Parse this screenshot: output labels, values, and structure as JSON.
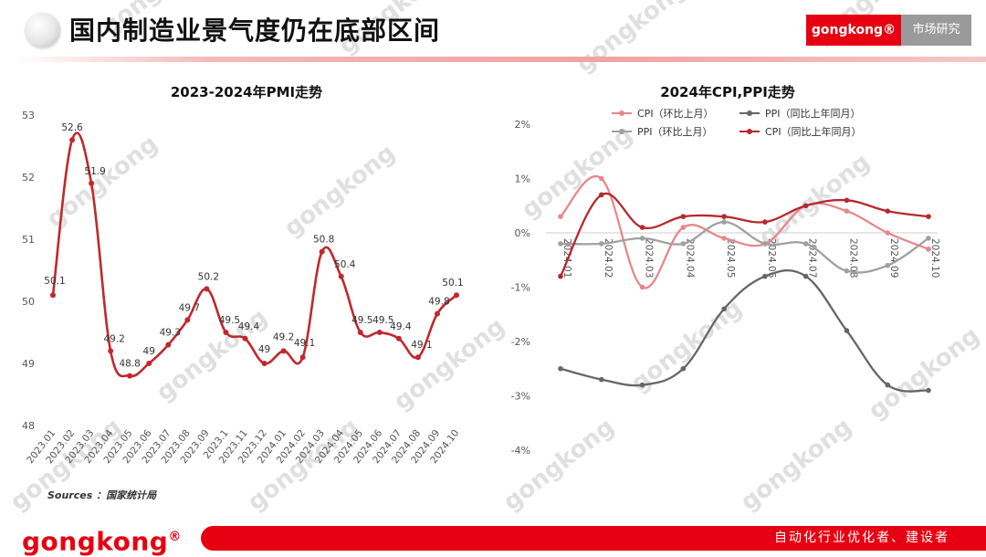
{
  "header": {
    "title": "国内制造业景气度仍在底部区间",
    "brand": "gongkong®",
    "section": "市场研究"
  },
  "watermark": {
    "text": "gongkong"
  },
  "source_note": "Sources ：国家统计局",
  "footer": {
    "logo": "gongkong",
    "logo_mark": "®",
    "slogan": "自动化行业优化者、建设者"
  },
  "colors": {
    "brand_red": "#e60012",
    "pmi_line": "#c0282d",
    "cpi_mom": "#e8878a",
    "ppi_yoy": "#666666",
    "ppi_mom": "#a0a0a0",
    "cpi_yoy": "#b7282e"
  },
  "chart_data": [
    {
      "type": "line",
      "title": "2023-2024年PMI走势",
      "categories": [
        "2023.01",
        "2023.02",
        "2023.03",
        "2023.04",
        "2023.05",
        "2023.06",
        "2023.07",
        "2023.08",
        "2023.09",
        "2023.1",
        "2023.11",
        "2023.12",
        "2024.01",
        "2024.02",
        "2024.03",
        "2024.04",
        "2024.05",
        "2024.06",
        "2024.07",
        "2024.08",
        "2024.09",
        "2024.10"
      ],
      "values": [
        50.1,
        52.6,
        51.9,
        49.2,
        48.8,
        49,
        49.3,
        49.7,
        50.2,
        49.5,
        49.4,
        49,
        49.2,
        49.1,
        50.8,
        50.4,
        49.5,
        49.5,
        49.4,
        49.1,
        49.8,
        50.1
      ],
      "data_labels": [
        "50.1",
        "52.6",
        "51.9",
        "49.2",
        "48.8",
        "49",
        "49.3",
        "49.7",
        "50.2",
        "49.5",
        "49.4",
        "49",
        "49.2",
        "49.1",
        "50.8",
        "50.4",
        "49.5",
        "49.5",
        "49.4",
        "49.1",
        "49.8",
        "50.1"
      ],
      "ylim": [
        48,
        53
      ],
      "yticks": [
        "48",
        "49",
        "50",
        "51",
        "52",
        "53"
      ],
      "smooth": true,
      "legend": "none"
    },
    {
      "type": "line",
      "title": "2024年CPI,PPI走势",
      "categories": [
        "2024.01",
        "2024.02",
        "2024.03",
        "2024.04",
        "2024.05",
        "2024.06",
        "2024.07",
        "2024.08",
        "2024.09",
        "2024.10"
      ],
      "ylim": [
        -4,
        2
      ],
      "yticks": [
        "2%",
        "1%",
        "0%",
        "-1%",
        "-2%",
        "-3%",
        "-4%"
      ],
      "legend": "top-left",
      "smooth": true,
      "series": [
        {
          "name": "CPI（环比上月）",
          "color": "#e8878a",
          "values": [
            0.3,
            1.0,
            -1.0,
            0.1,
            -0.1,
            -0.2,
            0.5,
            0.4,
            0.0,
            -0.3
          ]
        },
        {
          "name": "PPI（同比上年同月）",
          "color": "#666666",
          "values": [
            -2.5,
            -2.7,
            -2.8,
            -2.5,
            -1.4,
            -0.8,
            -0.8,
            -1.8,
            -2.8,
            -2.9
          ]
        },
        {
          "name": "PPI（环比上月）",
          "color": "#a0a0a0",
          "values": [
            -0.2,
            -0.2,
            -0.1,
            -0.2,
            0.2,
            -0.2,
            -0.2,
            -0.7,
            -0.6,
            -0.1
          ]
        },
        {
          "name": "CPI（同比上年同月）",
          "color": "#b7282e",
          "values": [
            -0.8,
            0.7,
            0.1,
            0.3,
            0.3,
            0.2,
            0.5,
            0.6,
            0.4,
            0.3
          ]
        }
      ]
    }
  ]
}
